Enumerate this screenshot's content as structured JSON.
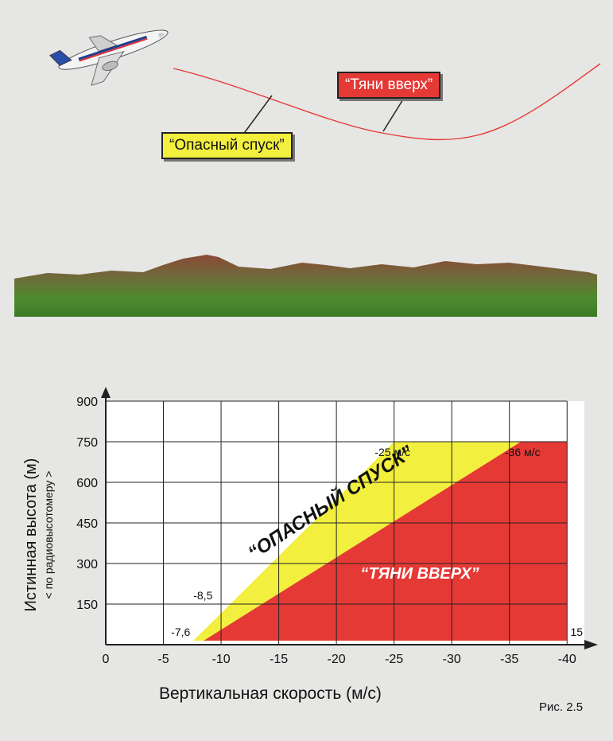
{
  "callouts": {
    "pull_up": "“Тяни вверх”",
    "dangerous_descent": "“Опасный спуск”"
  },
  "figure_label": "Рис. 2.5",
  "chart": {
    "y_axis_title": "Истинная высота (м)",
    "y_axis_subtitle": "< по радиовысотомеру >",
    "x_axis_title": "Вертикальная скорость (м/с)",
    "zone_caution_label": "“ОПАСНЫЙ СПУСК”",
    "zone_warning_label": "“ТЯНИ ВВЕРХ”",
    "annotations": [
      "-25 м/с",
      "-36 м/с",
      "-8,5",
      "-7,6",
      "15"
    ]
  },
  "chart_data": {
    "type": "area",
    "x_ticks": [
      "0",
      "-5",
      "-10",
      "-15",
      "-20",
      "-25",
      "-30",
      "-35",
      "-40"
    ],
    "y_ticks": [
      "150",
      "300",
      "450",
      "600",
      "750",
      "900"
    ],
    "xlim": [
      0,
      -40
    ],
    "ylim": [
      0,
      900
    ],
    "series": [
      {
        "name": "ОПАСНЫЙ СПУСК",
        "color": "#f2ef3e",
        "points": [
          [
            -7.6,
            15
          ],
          [
            -25,
            750
          ],
          [
            -40,
            750
          ],
          [
            -40,
            15
          ]
        ]
      },
      {
        "name": "ТЯНИ ВВЕРХ",
        "color": "#e53936",
        "points": [
          [
            -8.5,
            15
          ],
          [
            -36,
            750
          ],
          [
            -40,
            750
          ],
          [
            -40,
            15
          ]
        ]
      }
    ]
  },
  "colors": {
    "red": "#e53936",
    "yellow": "#f2ef3e",
    "terrain_top": "#8a4a36",
    "terrain_green": "#4b8a2e"
  },
  "icons": {
    "aircraft": "airplane-icon"
  }
}
